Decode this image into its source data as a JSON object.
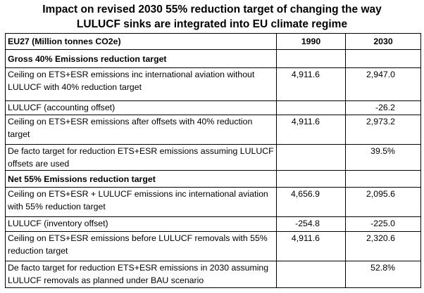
{
  "title": "Impact on revised 2030 55% reduction target of changing the way LULUCF sinks are integrated into EU climate regime",
  "table": {
    "header": [
      "EU27 (Million tonnes CO2e)",
      "1990",
      "2030"
    ],
    "rows": [
      {
        "cells": [
          "Gross 40% Emissions reduction target",
          null,
          null
        ],
        "bold": true
      },
      {
        "cells": [
          "Ceiling on ETS+ESR emissions inc international aviation without LULUCF with 40% reduction target",
          "4,911.6",
          "2,947.0"
        ]
      },
      {
        "cells": [
          "LULUCF (accounting offset)",
          null,
          "-26.2"
        ]
      },
      {
        "cells": [
          "Ceiling on ETS+ESR emissions after offsets with 40% reduction target",
          "4,911.6",
          "2,973.2"
        ]
      },
      {
        "cells": [
          "De facto target for reduction ETS+ESR emissions assuming LULUCF offsets are used",
          null,
          "39.5%"
        ]
      },
      {
        "cells": [
          "Net 55% Emissions reduction target",
          null,
          null
        ],
        "bold": true
      },
      {
        "cells": [
          "Ceiling on ETS+ESR + LULUCF emissions inc international aviation with 55% reduction target",
          "4,656.9",
          "2,095.6"
        ]
      },
      {
        "cells": [
          "LULUCF (inventory offset)",
          "-254.8",
          "-225.0"
        ]
      },
      {
        "cells": [
          "Ceiling on ETS+ESR emissions before LULUCF removals with 55% reduction target",
          "4,911.6",
          "2,320.6"
        ]
      },
      {
        "cells": [
          "De facto target for reduction ETS+ESR emissions in 2030 assuming LULUCF removals as planned under BAU scenario",
          null,
          "52.8%"
        ]
      }
    ]
  }
}
